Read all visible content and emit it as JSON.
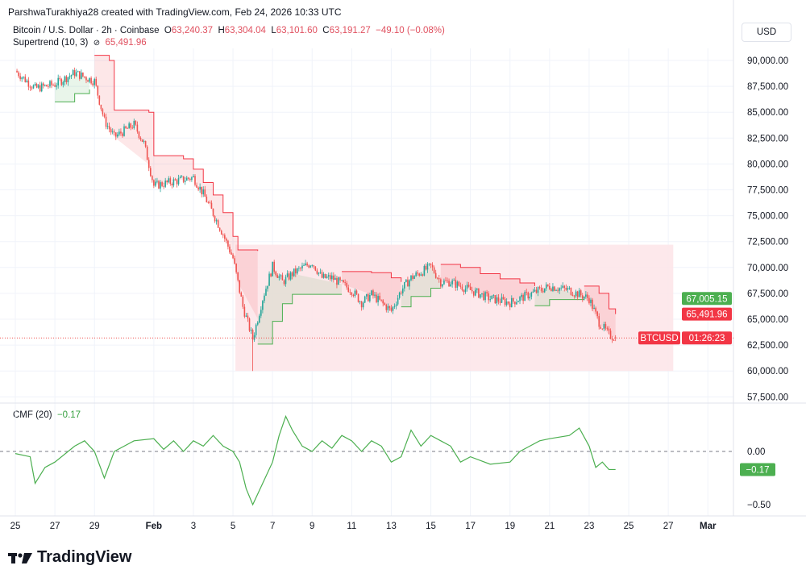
{
  "credit": "ParshwaTurakhiya28 created with TradingView.com, Feb 24, 2026 10:33 UTC",
  "legend": {
    "symbol": "Bitcoin / U.S. Dollar · 2h · Coinbase",
    "open_label": "O",
    "open": "63,240.37",
    "high_label": "H",
    "high": "63,304.04",
    "low_label": "L",
    "low": "63,101.60",
    "close_label": "C",
    "close": "63,191.27",
    "change": "−49.10 (−0.08%)",
    "indicator": "Supertrend (10, 3)",
    "indicator_icon": "hidden-eye-icon",
    "indicator_value": "65,491.96"
  },
  "currency": "USD",
  "cmf_legend": {
    "name": "CMF (20)",
    "value": "−0.17"
  },
  "colors": {
    "up": "#26a69a",
    "down": "#ef5350",
    "supertrend_up": "#4caf50",
    "supertrend_down": "#f23645",
    "cmf": "#4caf50",
    "range_box": "#fde4e8"
  },
  "price_badges": [
    {
      "label": "67,005.15",
      "color": "#4caf50"
    },
    {
      "label": "65,491.96",
      "color": "#f23645"
    },
    {
      "symbol": "BTCUSD",
      "label": "01:26:23",
      "color": "#f23645"
    }
  ],
  "brand": "TradingView",
  "chart_data": [
    {
      "type": "candlestick",
      "title": "Bitcoin / U.S. Dollar · 2h · Coinbase",
      "ylim": [
        56500,
        92500
      ],
      "y_ticks": [
        "90,000.00",
        "87,500.00",
        "85,000.00",
        "82,500.00",
        "80,000.00",
        "77,500.00",
        "75,000.00",
        "72,500.00",
        "70,000.00",
        "67,500.00",
        "65,000.00",
        "62,500.00",
        "60,000.00",
        "57,500.00"
      ],
      "y_tick_values": [
        90000,
        87500,
        85000,
        82500,
        80000,
        77500,
        75000,
        72500,
        70000,
        67500,
        65000,
        62500,
        60000,
        57500
      ],
      "x_ticks": [
        "25",
        "27",
        "29",
        "Feb",
        "3",
        "5",
        "7",
        "9",
        "11",
        "13",
        "15",
        "17",
        "19",
        "21",
        "23",
        "25",
        "27",
        "Mar"
      ],
      "x_tick_dates": [
        "2026-01-25",
        "2026-01-27",
        "2026-01-29",
        "2026-02-01",
        "2026-02-03",
        "2026-02-05",
        "2026-02-07",
        "2026-02-09",
        "2026-02-11",
        "2026-02-13",
        "2026-02-15",
        "2026-02-17",
        "2026-02-19",
        "2026-02-21",
        "2026-02-23",
        "2026-02-25",
        "2026-02-27",
        "2026-03-01"
      ],
      "price_path": [
        [
          "2026-01-25 00:00",
          89000
        ],
        [
          "2026-01-26 00:00",
          87300
        ],
        [
          "2026-01-27 00:00",
          87700
        ],
        [
          "2026-01-28 00:00",
          88800
        ],
        [
          "2026-01-29 00:00",
          88000
        ],
        [
          "2026-01-29 12:00",
          84200
        ],
        [
          "2026-01-30 00:00",
          82600
        ],
        [
          "2026-01-31 00:00",
          83800
        ],
        [
          "2026-01-31 12:00",
          82000
        ],
        [
          "2026-02-01 00:00",
          77900
        ],
        [
          "2026-02-02 00:00",
          78300
        ],
        [
          "2026-02-03 00:00",
          78700
        ],
        [
          "2026-02-03 12:00",
          77100
        ],
        [
          "2026-02-04 00:00",
          75200
        ],
        [
          "2026-02-04 12:00",
          73200
        ],
        [
          "2026-02-05 00:00",
          70900
        ],
        [
          "2026-02-05 12:00",
          66200
        ],
        [
          "2026-02-06 00:00",
          63100
        ],
        [
          "2026-02-06 12:00",
          67000
        ],
        [
          "2026-02-07 00:00",
          70100
        ],
        [
          "2026-02-07 12:00",
          68600
        ],
        [
          "2026-02-08 00:00",
          69400
        ],
        [
          "2026-02-09 00:00",
          70500
        ],
        [
          "2026-02-09 12:00",
          69000
        ],
        [
          "2026-02-10 00:00",
          69000
        ],
        [
          "2026-02-11 00:00",
          67800
        ],
        [
          "2026-02-11 12:00",
          66600
        ],
        [
          "2026-02-12 00:00",
          67400
        ],
        [
          "2026-02-13 00:00",
          65800
        ],
        [
          "2026-02-13 12:00",
          67800
        ],
        [
          "2026-02-14 00:00",
          69000
        ],
        [
          "2026-02-15 00:00",
          70100
        ],
        [
          "2026-02-15 12:00",
          68600
        ],
        [
          "2026-02-16 00:00",
          68600
        ],
        [
          "2026-02-17 00:00",
          67800
        ],
        [
          "2026-02-18 00:00",
          67000
        ],
        [
          "2026-02-19 00:00",
          66600
        ],
        [
          "2026-02-20 00:00",
          67400
        ],
        [
          "2026-02-21 00:00",
          68200
        ],
        [
          "2026-02-22 00:00",
          67800
        ],
        [
          "2026-02-23 00:00",
          67000
        ],
        [
          "2026-02-23 12:00",
          64700
        ],
        [
          "2026-02-24 00:00",
          63500
        ],
        [
          "2026-02-24 08:00",
          63191.27
        ]
      ],
      "last_price": 63191.27,
      "supertrend": [
        {
          "dir": "up",
          "points": [
            [
              "2026-01-27 00:00",
              86000
            ],
            [
              "2026-01-28 00:00",
              86800
            ],
            [
              "2026-01-28 18:00",
              87200
            ]
          ]
        },
        {
          "dir": "down",
          "points": [
            [
              "2026-01-29 00:00",
              90500
            ],
            [
              "2026-01-29 18:00",
              90000
            ],
            [
              "2026-01-30 00:00",
              85200
            ],
            [
              "2026-01-31 18:00",
              85000
            ],
            [
              "2026-02-01 00:00",
              80800
            ],
            [
              "2026-02-02 12:00",
              80500
            ],
            [
              "2026-02-03 00:00",
              79500
            ],
            [
              "2026-02-03 12:00",
              78200
            ],
            [
              "2026-02-04 00:00",
              77000
            ],
            [
              "2026-02-04 12:00",
              75300
            ],
            [
              "2026-02-05 00:00",
              73000
            ],
            [
              "2026-02-05 06:00",
              71700
            ],
            [
              "2026-02-06 06:00",
              71600
            ]
          ]
        },
        {
          "dir": "up",
          "points": [
            [
              "2026-02-06 06:00",
              62600
            ],
            [
              "2026-02-07 00:00",
              64800
            ],
            [
              "2026-02-07 12:00",
              66500
            ],
            [
              "2026-02-08 00:00",
              67400
            ],
            [
              "2026-02-10 12:00",
              67400
            ]
          ]
        },
        {
          "dir": "down",
          "points": [
            [
              "2026-02-10 12:00",
              69600
            ],
            [
              "2026-02-12 00:00",
              69500
            ],
            [
              "2026-02-13 00:00",
              69000
            ],
            [
              "2026-02-13 12:00",
              68600
            ]
          ]
        },
        {
          "dir": "up",
          "points": [
            [
              "2026-02-13 12:00",
              66200
            ],
            [
              "2026-02-14 00:00",
              67200
            ],
            [
              "2026-02-15 00:00",
              68000
            ],
            [
              "2026-02-15 12:00",
              68000
            ]
          ]
        },
        {
          "dir": "down",
          "points": [
            [
              "2026-02-15 12:00",
              70300
            ],
            [
              "2026-02-16 12:00",
              70000
            ],
            [
              "2026-02-17 12:00",
              69400
            ],
            [
              "2026-02-18 12:00",
              68900
            ],
            [
              "2026-02-19 12:00",
              68500
            ],
            [
              "2026-02-20 06:00",
              68200
            ]
          ]
        },
        {
          "dir": "up",
          "points": [
            [
              "2026-02-20 06:00",
              66300
            ],
            [
              "2026-02-21 00:00",
              66900
            ],
            [
              "2026-02-22 18:00",
              67000
            ]
          ]
        },
        {
          "dir": "down",
          "points": [
            [
              "2026-02-22 18:00",
              68200
            ],
            [
              "2026-02-23 12:00",
              67500
            ],
            [
              "2026-02-24 00:00",
              66000
            ],
            [
              "2026-02-24 08:00",
              65491.96
            ]
          ]
        }
      ],
      "range_box": {
        "from": "2026-02-05 03:00",
        "to": "2026-02-27 06:00",
        "top": 72200,
        "bottom": 60000
      }
    },
    {
      "type": "line",
      "title": "CMF (20)",
      "ylim": [
        -0.58,
        0.42
      ],
      "y_ticks": [
        "0.00",
        "−0.50"
      ],
      "y_tick_values": [
        0,
        -0.5
      ],
      "baseline": 0,
      "series": [
        {
          "name": "CMF (20)",
          "points": [
            [
              "2026-01-25 00:00",
              -0.02
            ],
            [
              "2026-01-25 18:00",
              -0.05
            ],
            [
              "2026-01-26 00:00",
              -0.3
            ],
            [
              "2026-01-26 12:00",
              -0.15
            ],
            [
              "2026-01-27 00:00",
              -0.1
            ],
            [
              "2026-01-28 00:00",
              0.05
            ],
            [
              "2026-01-28 12:00",
              0.1
            ],
            [
              "2026-01-29 00:00",
              0.0
            ],
            [
              "2026-01-29 12:00",
              -0.25
            ],
            [
              "2026-01-30 00:00",
              0.0
            ],
            [
              "2026-01-31 00:00",
              0.1
            ],
            [
              "2026-02-01 00:00",
              0.12
            ],
            [
              "2026-02-01 12:00",
              0.02
            ],
            [
              "2026-02-02 00:00",
              0.1
            ],
            [
              "2026-02-02 12:00",
              0.0
            ],
            [
              "2026-02-03 00:00",
              0.1
            ],
            [
              "2026-02-03 12:00",
              0.05
            ],
            [
              "2026-02-04 00:00",
              0.15
            ],
            [
              "2026-02-04 12:00",
              0.05
            ],
            [
              "2026-02-05 00:00",
              0.0
            ],
            [
              "2026-02-05 08:00",
              -0.1
            ],
            [
              "2026-02-05 16:00",
              -0.35
            ],
            [
              "2026-02-06 00:00",
              -0.5
            ],
            [
              "2026-02-06 12:00",
              -0.3
            ],
            [
              "2026-02-07 00:00",
              -0.1
            ],
            [
              "2026-02-07 08:00",
              0.15
            ],
            [
              "2026-02-07 16:00",
              0.33
            ],
            [
              "2026-02-08 00:00",
              0.2
            ],
            [
              "2026-02-08 12:00",
              0.05
            ],
            [
              "2026-02-09 00:00",
              0.0
            ],
            [
              "2026-02-09 12:00",
              0.1
            ],
            [
              "2026-02-10 00:00",
              0.03
            ],
            [
              "2026-02-10 12:00",
              0.15
            ],
            [
              "2026-02-11 00:00",
              0.1
            ],
            [
              "2026-02-11 12:00",
              0.0
            ],
            [
              "2026-02-12 00:00",
              0.1
            ],
            [
              "2026-02-12 12:00",
              0.05
            ],
            [
              "2026-02-13 00:00",
              -0.1
            ],
            [
              "2026-02-13 12:00",
              -0.05
            ],
            [
              "2026-02-14 00:00",
              0.2
            ],
            [
              "2026-02-14 12:00",
              0.05
            ],
            [
              "2026-02-15 00:00",
              0.15
            ],
            [
              "2026-02-15 12:00",
              0.1
            ],
            [
              "2026-02-16 00:00",
              0.05
            ],
            [
              "2026-02-16 12:00",
              -0.1
            ],
            [
              "2026-02-17 00:00",
              -0.05
            ],
            [
              "2026-02-18 00:00",
              -0.12
            ],
            [
              "2026-02-19 00:00",
              -0.1
            ],
            [
              "2026-02-19 12:00",
              0.0
            ],
            [
              "2026-02-20 00:00",
              0.05
            ],
            [
              "2026-02-20 12:00",
              0.1
            ],
            [
              "2026-02-21 00:00",
              0.12
            ],
            [
              "2026-02-22 00:00",
              0.15
            ],
            [
              "2026-02-22 12:00",
              0.22
            ],
            [
              "2026-02-23 00:00",
              0.05
            ],
            [
              "2026-02-23 08:00",
              -0.15
            ],
            [
              "2026-02-23 16:00",
              -0.1
            ],
            [
              "2026-02-24 00:00",
              -0.17
            ],
            [
              "2026-02-24 08:00",
              -0.17
            ]
          ]
        }
      ],
      "last_value_label": "−0.17"
    }
  ]
}
